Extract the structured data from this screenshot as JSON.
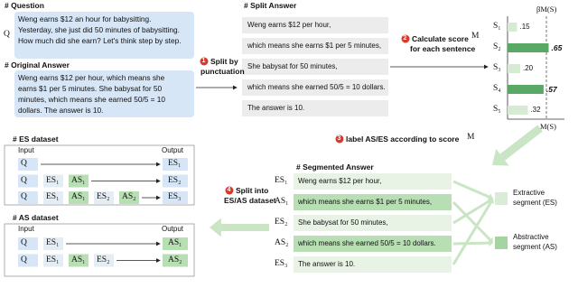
{
  "question": {
    "title": "# Question",
    "symbol": "Q",
    "lines": [
      "Weng earns $12 an hour for babysitting.",
      "Yesterday, she just did 50 minutes of babysitting.",
      "How much did she earn? Let's think step by step."
    ]
  },
  "original_answer": {
    "title": "# Original Answer",
    "lines": [
      "Weng earns $12 per hour, which means she",
      "earns $1 per 5 minutes. She babysat for 50",
      "minutes, which means she earned 50/5 = 10",
      "dollars. The answer is 10."
    ]
  },
  "steps": [
    {
      "number": "1",
      "lines": [
        "Split by",
        "punctuation"
      ]
    },
    {
      "number": "2",
      "lines": [
        "Calculate score",
        "for each sentence"
      ],
      "symbol": "M"
    },
    {
      "number": "3",
      "lines": [
        "label AS/ES according to score"
      ],
      "symbol": "M"
    },
    {
      "number": "4",
      "lines": [
        "Split into",
        "ES/AS dataset"
      ]
    }
  ],
  "split_answer": {
    "title": "# Split Answer",
    "sentences": [
      "Weng earns $12 per hour,",
      "which means she earns $1 per 5 minutes,",
      "She babysat for 50 minutes,",
      "which means she earned 50/5 = 10 dollars.",
      "The answer is 10."
    ]
  },
  "scores": {
    "threshold_label": "βM(S)",
    "axis_label": "M(S)",
    "items": [
      {
        "label": "S₁",
        "value": {
          "value": 0.15,
          "label": ".15"
        },
        "color": "#d7ead3",
        "bold": false
      },
      {
        "label": "S₂",
        "value": {
          "value": 0.65,
          "label": ".65"
        },
        "color": "#5aa865",
        "bold": true
      },
      {
        "label": "S₃",
        "value": {
          "value": 0.2,
          "label": ".20"
        },
        "color": "#d7ead3",
        "bold": false
      },
      {
        "label": "S₄",
        "value": {
          "value": 0.57,
          "label": ".57"
        },
        "color": "#5aa865",
        "bold": true
      },
      {
        "label": "S₅",
        "value": {
          "value": 0.32,
          "label": ".32"
        },
        "color": "#d7ead3",
        "bold": false
      }
    ]
  },
  "segmented_answer": {
    "title": "# Segmented Answer",
    "rows": [
      {
        "tag": "ES₁",
        "text": "Weng earns $12 per hour,",
        "color": "#e8f3e5"
      },
      {
        "tag": "AS₁",
        "text": "which means she earns $1 per 5 minutes,",
        "color": "#b8deb3"
      },
      {
        "tag": "ES₂",
        "text": "She babysat for 50 minutes,",
        "color": "#e8f3e5"
      },
      {
        "tag": "AS₂",
        "text": "which means she earned 50/5 = 10 dollars.",
        "color": "#b8deb3"
      },
      {
        "tag": "ES₃",
        "text": "The answer is 10.",
        "color": "#e8f3e5"
      }
    ],
    "segments": [
      {
        "lines": [
          "Extractive",
          "segment (ES)"
        ],
        "color": "#d9ecd5"
      },
      {
        "lines": [
          "Abstractive",
          "segment (AS)"
        ],
        "color": "#a6d4a0"
      }
    ]
  },
  "es_dataset": {
    "title": "# ES dataset",
    "input_label": "Input",
    "output_label": "Output",
    "rows": [
      {
        "input": [
          "Q"
        ],
        "output": "ES₁"
      },
      {
        "input": [
          "Q",
          "ES₁",
          "AS₁"
        ],
        "output": "ES₂"
      },
      {
        "input": [
          "Q",
          "ES₁",
          "AS₁",
          "ES₂",
          "AS₂"
        ],
        "output": "ES₃"
      }
    ]
  },
  "as_dataset": {
    "title": "# AS dataset",
    "input_label": "Input",
    "output_label": "Output",
    "rows": [
      {
        "input": [
          "Q",
          "ES₁"
        ],
        "output": "AS₁"
      },
      {
        "input": [
          "Q",
          "ES₁",
          "AS₁",
          "ES₂"
        ],
        "output": "AS₂"
      }
    ]
  }
}
